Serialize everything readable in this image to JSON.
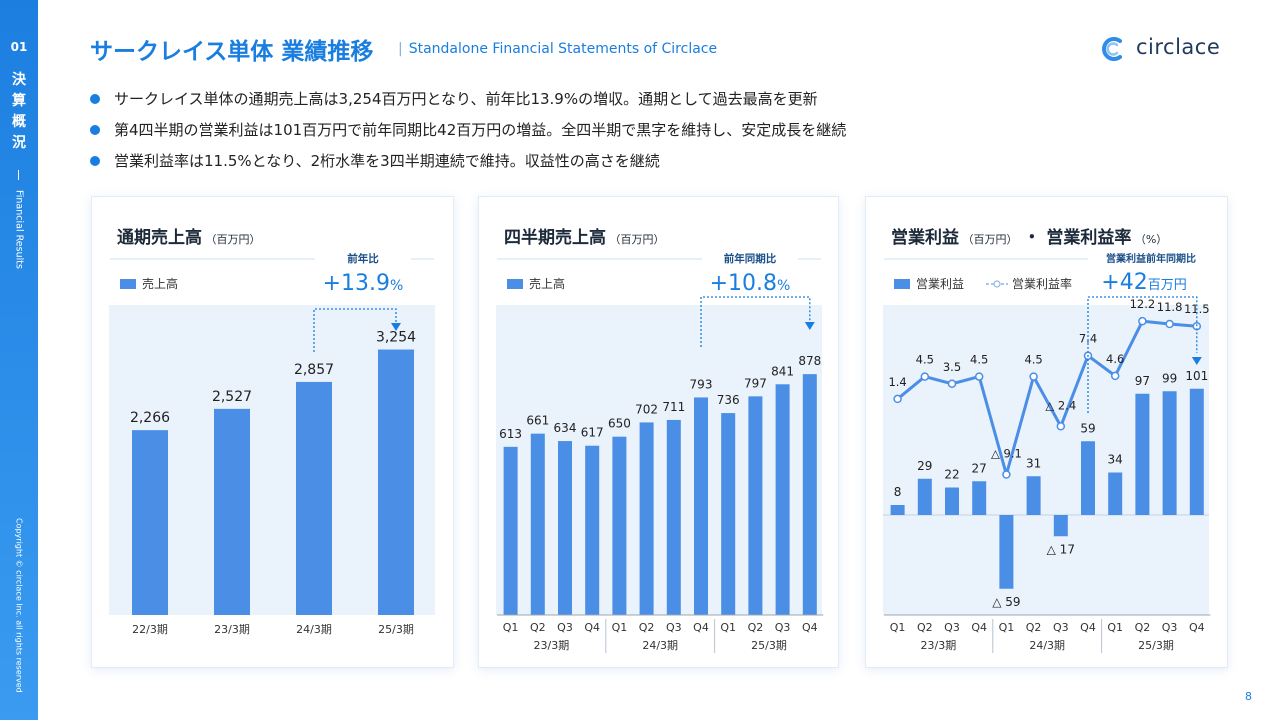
{
  "sidebar": {
    "number": "01",
    "title": [
      "決",
      "算",
      "概",
      "況"
    ],
    "subtitle": "Financial Results",
    "copyright": "Copyright © circlace Inc. all rights reserved"
  },
  "header": {
    "title": "サークレイス単体 業績推移",
    "subtitle": "Standalone Financial Statements of Circlace",
    "separator": "|"
  },
  "logo": {
    "text": "circlace"
  },
  "bullets": [
    "サークレイス単体の通期売上高は3,254百万円となり、前年比13.9%の増収。通期として過去最高を更新",
    "第4四半期の営業利益は101百万円で前年同期比42百万円の増益。全四半期で黒字を維持し、安定成長を継続",
    "営業利益率は11.5%となり、2桁水準を3四半期連続で維持。収益性の高さを継続"
  ],
  "page_number": "8",
  "colors": {
    "accent": "#1a7ee0",
    "bar": "#4a8ee6",
    "plot_bg": "#eaf2fc",
    "line": "#4a8ee6"
  },
  "chart_data": [
    {
      "type": "bar",
      "title": "通期売上高",
      "unit": "（百万円）",
      "legend": "売上高",
      "categories": [
        "22/3期",
        "23/3期",
        "24/3期",
        "25/3期"
      ],
      "values": [
        2266,
        2527,
        2857,
        3254
      ],
      "labels": [
        "2,266",
        "2,527",
        "2,857",
        "3,254"
      ],
      "callout_label": "前年比",
      "callout_value": "+13.9",
      "callout_unit": "%"
    },
    {
      "type": "bar",
      "title": "四半期売上高",
      "unit": "（百万円）",
      "legend": "売上高",
      "quarters": [
        "Q1",
        "Q2",
        "Q3",
        "Q4",
        "Q1",
        "Q2",
        "Q3",
        "Q4",
        "Q1",
        "Q2",
        "Q3",
        "Q4"
      ],
      "years": [
        "23/3期",
        "24/3期",
        "25/3期"
      ],
      "values": [
        613,
        661,
        634,
        617,
        650,
        702,
        711,
        793,
        736,
        797,
        841,
        878
      ],
      "callout_label": "前年同期比",
      "callout_value": "+10.8",
      "callout_unit": "%"
    },
    {
      "type": "bar+line",
      "title": "営業利益",
      "unit": "（百万円）",
      "title_sep": "・",
      "title2": "営業利益率",
      "unit2": "（%）",
      "legend_bar": "営業利益",
      "legend_line": "営業利益率",
      "quarters": [
        "Q1",
        "Q2",
        "Q3",
        "Q4",
        "Q1",
        "Q2",
        "Q3",
        "Q4",
        "Q1",
        "Q2",
        "Q3",
        "Q4"
      ],
      "years": [
        "23/3期",
        "24/3期",
        "25/3期"
      ],
      "bar_values": [
        8,
        29,
        22,
        27,
        -59,
        31,
        -17,
        59,
        34,
        97,
        99,
        101
      ],
      "bar_labels": [
        "8",
        "29",
        "22",
        "27",
        "△ 59",
        "31",
        "△ 17",
        "59",
        "34",
        "97",
        "99",
        "101"
      ],
      "line_values": [
        1.4,
        4.5,
        3.5,
        4.5,
        -9.1,
        4.5,
        -2.4,
        7.4,
        4.6,
        12.2,
        11.8,
        11.5
      ],
      "line_labels": [
        "1.4",
        "4.5",
        "3.5",
        "4.5",
        "△ 9.1",
        "4.5",
        "△ 2.4",
        "7.4",
        "4.6",
        "12.2",
        "11.8",
        "11.5"
      ],
      "callout_label": "営業利益前年同期比",
      "callout_value": "+42",
      "callout_unit": "百万円"
    }
  ]
}
